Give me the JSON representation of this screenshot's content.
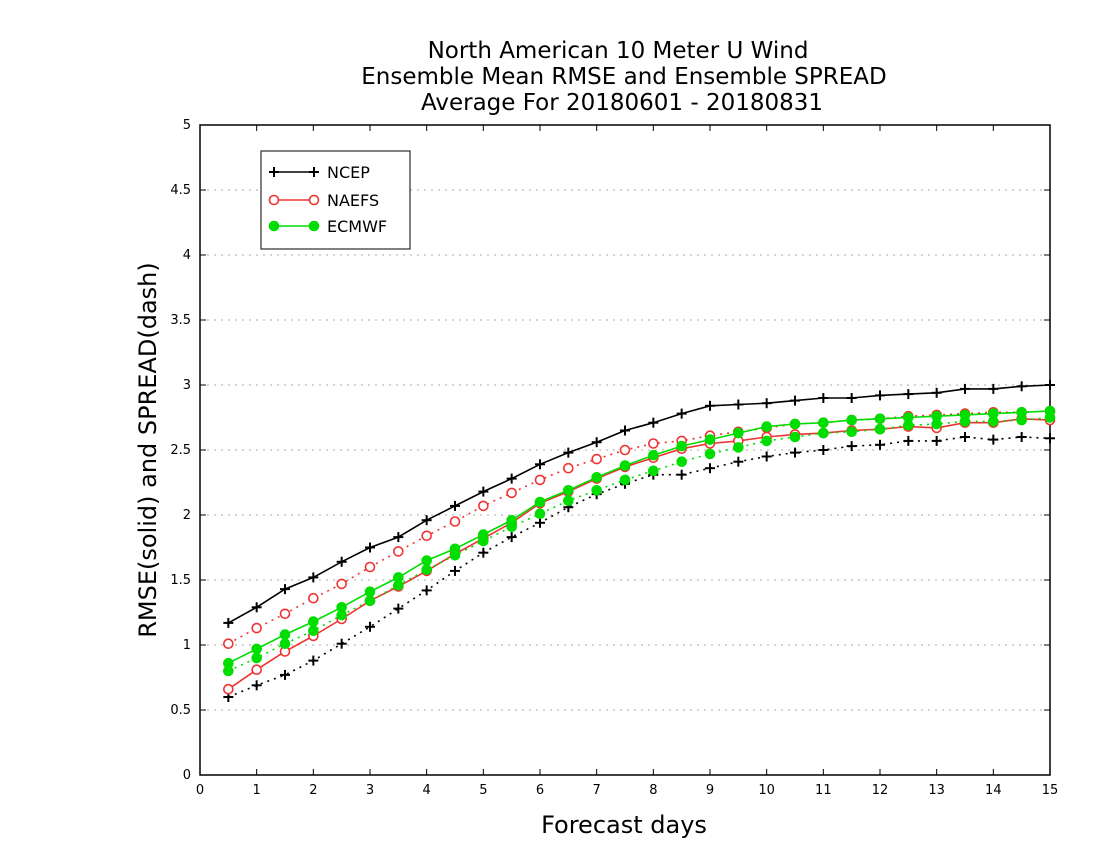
{
  "chart_data": {
    "type": "line",
    "title": [
      "North American 10 Meter U Wind",
      "Ensemble Mean RMSE and Ensemble SPREAD",
      "Average For 20180601 - 20180831"
    ],
    "xlabel": "Forecast days",
    "ylabel": "RMSE(solid) and SPREAD(dash)",
    "xlim": [
      0,
      15
    ],
    "ylim": [
      0,
      5
    ],
    "x_ticks": [
      "0",
      "1",
      "2",
      "3",
      "4",
      "5",
      "6",
      "7",
      "8",
      "9",
      "10",
      "11",
      "12",
      "13",
      "14",
      "15"
    ],
    "y_ticks": [
      "0",
      "0.5",
      "1",
      "1.5",
      "2",
      "2.5",
      "3",
      "3.5",
      "4",
      "4.5",
      "5"
    ],
    "grid": "horizontal dotted",
    "legend_position": "top-left",
    "x": [
      0.5,
      1,
      1.5,
      2,
      2.5,
      3,
      3.5,
      4,
      4.5,
      5,
      5.5,
      6,
      6.5,
      7,
      7.5,
      8,
      8.5,
      9,
      9.5,
      10,
      10.5,
      11,
      11.5,
      12,
      12.5,
      13,
      13.5,
      14,
      14.5,
      15
    ],
    "series": [
      {
        "name": "NCEP",
        "color": "#000000",
        "marker": "plus",
        "rmse": [
          1.17,
          1.29,
          1.43,
          1.52,
          1.64,
          1.75,
          1.83,
          1.96,
          2.07,
          2.18,
          2.28,
          2.39,
          2.48,
          2.56,
          2.65,
          2.71,
          2.78,
          2.84,
          2.85,
          2.86,
          2.88,
          2.9,
          2.9,
          2.92,
          2.93,
          2.94,
          2.97,
          2.97,
          2.99,
          3.0
        ],
        "spread": [
          0.6,
          0.69,
          0.77,
          0.88,
          1.01,
          1.14,
          1.28,
          1.42,
          1.57,
          1.71,
          1.83,
          1.94,
          2.06,
          2.16,
          2.24,
          2.31,
          2.31,
          2.36,
          2.41,
          2.45,
          2.48,
          2.5,
          2.53,
          2.54,
          2.57,
          2.57,
          2.6,
          2.58,
          2.6,
          2.59
        ]
      },
      {
        "name": "NAEFS",
        "color": "#ee3333",
        "marker": "open-circle",
        "rmse": [
          0.66,
          0.81,
          0.95,
          1.07,
          1.2,
          1.34,
          1.45,
          1.57,
          1.7,
          1.82,
          1.94,
          2.09,
          2.18,
          2.28,
          2.37,
          2.44,
          2.51,
          2.55,
          2.57,
          2.6,
          2.62,
          2.63,
          2.65,
          2.66,
          2.68,
          2.67,
          2.71,
          2.71,
          2.74,
          2.73
        ],
        "spread": [
          1.01,
          1.13,
          1.24,
          1.36,
          1.47,
          1.6,
          1.72,
          1.84,
          1.95,
          2.07,
          2.17,
          2.27,
          2.36,
          2.43,
          2.5,
          2.55,
          2.57,
          2.61,
          2.64,
          2.67,
          2.7,
          2.71,
          2.73,
          2.74,
          2.76,
          2.77,
          2.78,
          2.79,
          2.79,
          2.8
        ]
      },
      {
        "name": "ECMWF",
        "color": "#00dd00",
        "marker": "filled-circle",
        "rmse": [
          0.86,
          0.97,
          1.08,
          1.18,
          1.29,
          1.41,
          1.52,
          1.65,
          1.74,
          1.85,
          1.96,
          2.1,
          2.19,
          2.29,
          2.38,
          2.46,
          2.53,
          2.58,
          2.63,
          2.68,
          2.7,
          2.71,
          2.73,
          2.74,
          2.75,
          2.76,
          2.77,
          2.78,
          2.79,
          2.8
        ],
        "spread": [
          0.8,
          0.9,
          1.01,
          1.11,
          1.23,
          1.34,
          1.46,
          1.58,
          1.69,
          1.8,
          1.91,
          2.01,
          2.11,
          2.19,
          2.27,
          2.34,
          2.41,
          2.47,
          2.52,
          2.57,
          2.6,
          2.63,
          2.64,
          2.66,
          2.69,
          2.7,
          2.72,
          2.72,
          2.73,
          2.75
        ]
      }
    ]
  }
}
